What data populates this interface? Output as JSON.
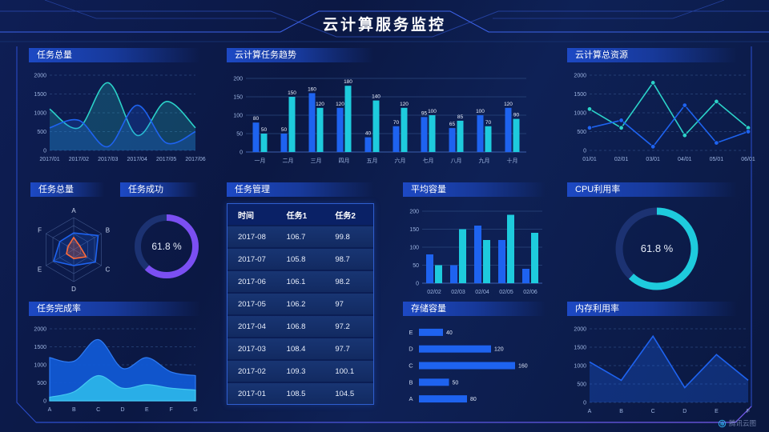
{
  "header": {
    "title": "云计算服务监控"
  },
  "watermark": {
    "label": "腾讯云图"
  },
  "colors": {
    "blue": "#1e63f0",
    "cyan": "#1ecbdd",
    "teal": "#2bd2c9",
    "purple": "#7b4ff2",
    "orange": "#ff6a3a",
    "deepblue": "#1159d4",
    "lightblue": "#2bb3e8",
    "axis_text": "#9db4e0",
    "title_bar": "#1d49c4",
    "frame": "#2c4fd0",
    "background": "#0c1a47"
  },
  "chart_data": [
    {
      "id": "task-total-line",
      "panel_title": "任务总量",
      "type": "area",
      "smooth": true,
      "categories": [
        "2017/01",
        "2017/02",
        "2017/03",
        "2017/04",
        "2017/05",
        "2017/06"
      ],
      "series": [
        {
          "color_key": "teal",
          "values": [
            1100,
            600,
            1800,
            400,
            1300,
            600
          ]
        },
        {
          "color_key": "blue",
          "values": [
            600,
            800,
            100,
            1200,
            200,
            500
          ]
        }
      ],
      "ylim": [
        0,
        2000
      ],
      "yticks": [
        0,
        500,
        1000,
        1500,
        2000
      ],
      "grid": "dashed"
    },
    {
      "id": "cloud-task-trend",
      "panel_title": "云计算任务趋势",
      "type": "bar",
      "value_labels": true,
      "categories": [
        "一月",
        "二月",
        "三月",
        "四月",
        "五月",
        "六月",
        "七月",
        "八月",
        "九月",
        "十月"
      ],
      "series": [
        {
          "color_key": "blue",
          "values": [
            80,
            50,
            160,
            120,
            40,
            70,
            95,
            65,
            100,
            120
          ]
        },
        {
          "color_key": "cyan",
          "values": [
            50,
            150,
            120,
            180,
            140,
            120,
            100,
            85,
            70,
            90
          ]
        }
      ],
      "ylim": [
        0,
        200
      ],
      "yticks": [
        0,
        50,
        100,
        150,
        200
      ],
      "grid": "solid"
    },
    {
      "id": "cloud-total-resources",
      "panel_title": "云计算总资源",
      "type": "line",
      "markers": true,
      "categories": [
        "01/01",
        "02/01",
        "03/01",
        "04/01",
        "05/01",
        "06/01"
      ],
      "series": [
        {
          "color_key": "teal",
          "values": [
            1100,
            600,
            1800,
            400,
            1300,
            600
          ]
        },
        {
          "color_key": "blue",
          "values": [
            600,
            800,
            100,
            1200,
            200,
            500
          ]
        }
      ],
      "ylim": [
        0,
        2000
      ],
      "yticks": [
        0,
        500,
        1000,
        1500,
        2000
      ],
      "grid": "dashed"
    },
    {
      "id": "task-total-radar",
      "panel_title": "任务总量",
      "type": "radar",
      "axes": [
        "A",
        "B",
        "C",
        "D",
        "E",
        "F"
      ],
      "max": 1,
      "series": [
        {
          "color_key": "blue",
          "values": [
            0.52,
            0.88,
            0.78,
            0.5,
            0.72,
            0.5
          ]
        },
        {
          "color_key": "orange",
          "values": [
            0.38,
            0.22,
            0.45,
            0.28,
            0.26,
            0.2
          ]
        }
      ]
    },
    {
      "id": "task-success",
      "panel_title": "任务成功",
      "type": "donut",
      "value": 61.8,
      "label": "61.8 %",
      "color_key": "purple"
    },
    {
      "id": "task-table",
      "panel_title": "任务管理",
      "type": "table",
      "headers": [
        "时间",
        "任务1",
        "任务2"
      ],
      "rows": [
        [
          "2017-08",
          "106.7",
          "99.8"
        ],
        [
          "2017-07",
          "105.8",
          "98.7"
        ],
        [
          "2017-06",
          "106.1",
          "98.2"
        ],
        [
          "2017-05",
          "106.2",
          "97"
        ],
        [
          "2017-04",
          "106.8",
          "97.2"
        ],
        [
          "2017-03",
          "108.4",
          "97.7"
        ],
        [
          "2017-02",
          "109.3",
          "100.1"
        ],
        [
          "2017-01",
          "108.5",
          "104.5"
        ]
      ]
    },
    {
      "id": "avg-capacity",
      "panel_title": "平均容量",
      "type": "bar",
      "value_labels": false,
      "categories": [
        "02/02",
        "02/03",
        "02/04",
        "02/05",
        "02/06"
      ],
      "series": [
        {
          "color_key": "blue",
          "values": [
            80,
            50,
            160,
            120,
            40
          ]
        },
        {
          "color_key": "cyan",
          "values": [
            50,
            150,
            120,
            190,
            140
          ]
        }
      ],
      "ylim": [
        0,
        200
      ],
      "yticks": [
        0,
        50,
        100,
        150,
        200
      ],
      "grid": "solid"
    },
    {
      "id": "cpu-usage",
      "panel_title": "CPU利用率",
      "type": "donut",
      "value": 61.8,
      "label": "61.8 %",
      "color_key": "cyan"
    },
    {
      "id": "task-completion",
      "panel_title": "任务完成率",
      "type": "area2",
      "smooth": true,
      "categories": [
        "A",
        "B",
        "C",
        "D",
        "E",
        "F",
        "G"
      ],
      "series": [
        {
          "color_key": "deepblue",
          "values": [
            1200,
            1100,
            1700,
            900,
            1200,
            800,
            700
          ]
        },
        {
          "color_key": "lightblue",
          "values": [
            100,
            250,
            700,
            350,
            450,
            350,
            300
          ]
        }
      ],
      "ylim": [
        0,
        2000
      ],
      "yticks": [
        0,
        500,
        1000,
        1500,
        2000
      ],
      "grid": "dashed"
    },
    {
      "id": "storage-capacity",
      "panel_title": "存储容量",
      "type": "hbar",
      "color_key": "blue",
      "categories": [
        "E",
        "D",
        "C",
        "B",
        "A"
      ],
      "values": [
        40,
        120,
        160,
        50,
        80
      ],
      "max": 160
    },
    {
      "id": "memory-usage",
      "panel_title": "内存利用率",
      "type": "area",
      "smooth": false,
      "categories": [
        "A",
        "B",
        "C",
        "D",
        "E",
        "F"
      ],
      "series": [
        {
          "color_key": "blue",
          "values": [
            1100,
            600,
            1800,
            400,
            1300,
            600
          ]
        }
      ],
      "ylim": [
        0,
        2000
      ],
      "yticks": [
        0,
        500,
        1000,
        1500,
        2000
      ],
      "grid": "dashed",
      "fill_opacity": 0.3
    }
  ]
}
